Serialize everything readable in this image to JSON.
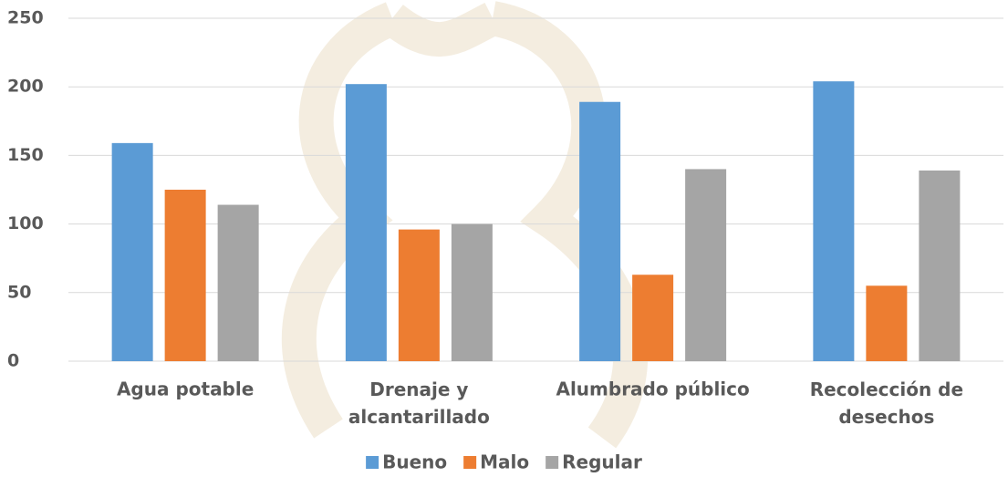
{
  "chart_data": {
    "type": "bar",
    "categories": [
      "Agua potable",
      "Drenaje y alcantarillado",
      "Alumbrado público",
      "Recolección de desechos"
    ],
    "series": [
      {
        "name": "Bueno",
        "color": "#5b9bd5",
        "values": [
          159,
          202,
          189,
          204
        ]
      },
      {
        "name": "Malo",
        "color": "#ed7d31",
        "values": [
          125,
          96,
          63,
          55
        ]
      },
      {
        "name": "Regular",
        "color": "#a5a5a5",
        "values": [
          114,
          100,
          140,
          139
        ]
      }
    ],
    "ylim": [
      0,
      250
    ],
    "yticks": [
      0,
      50,
      100,
      150,
      200,
      250
    ],
    "grid": true,
    "legend": "bottom"
  }
}
